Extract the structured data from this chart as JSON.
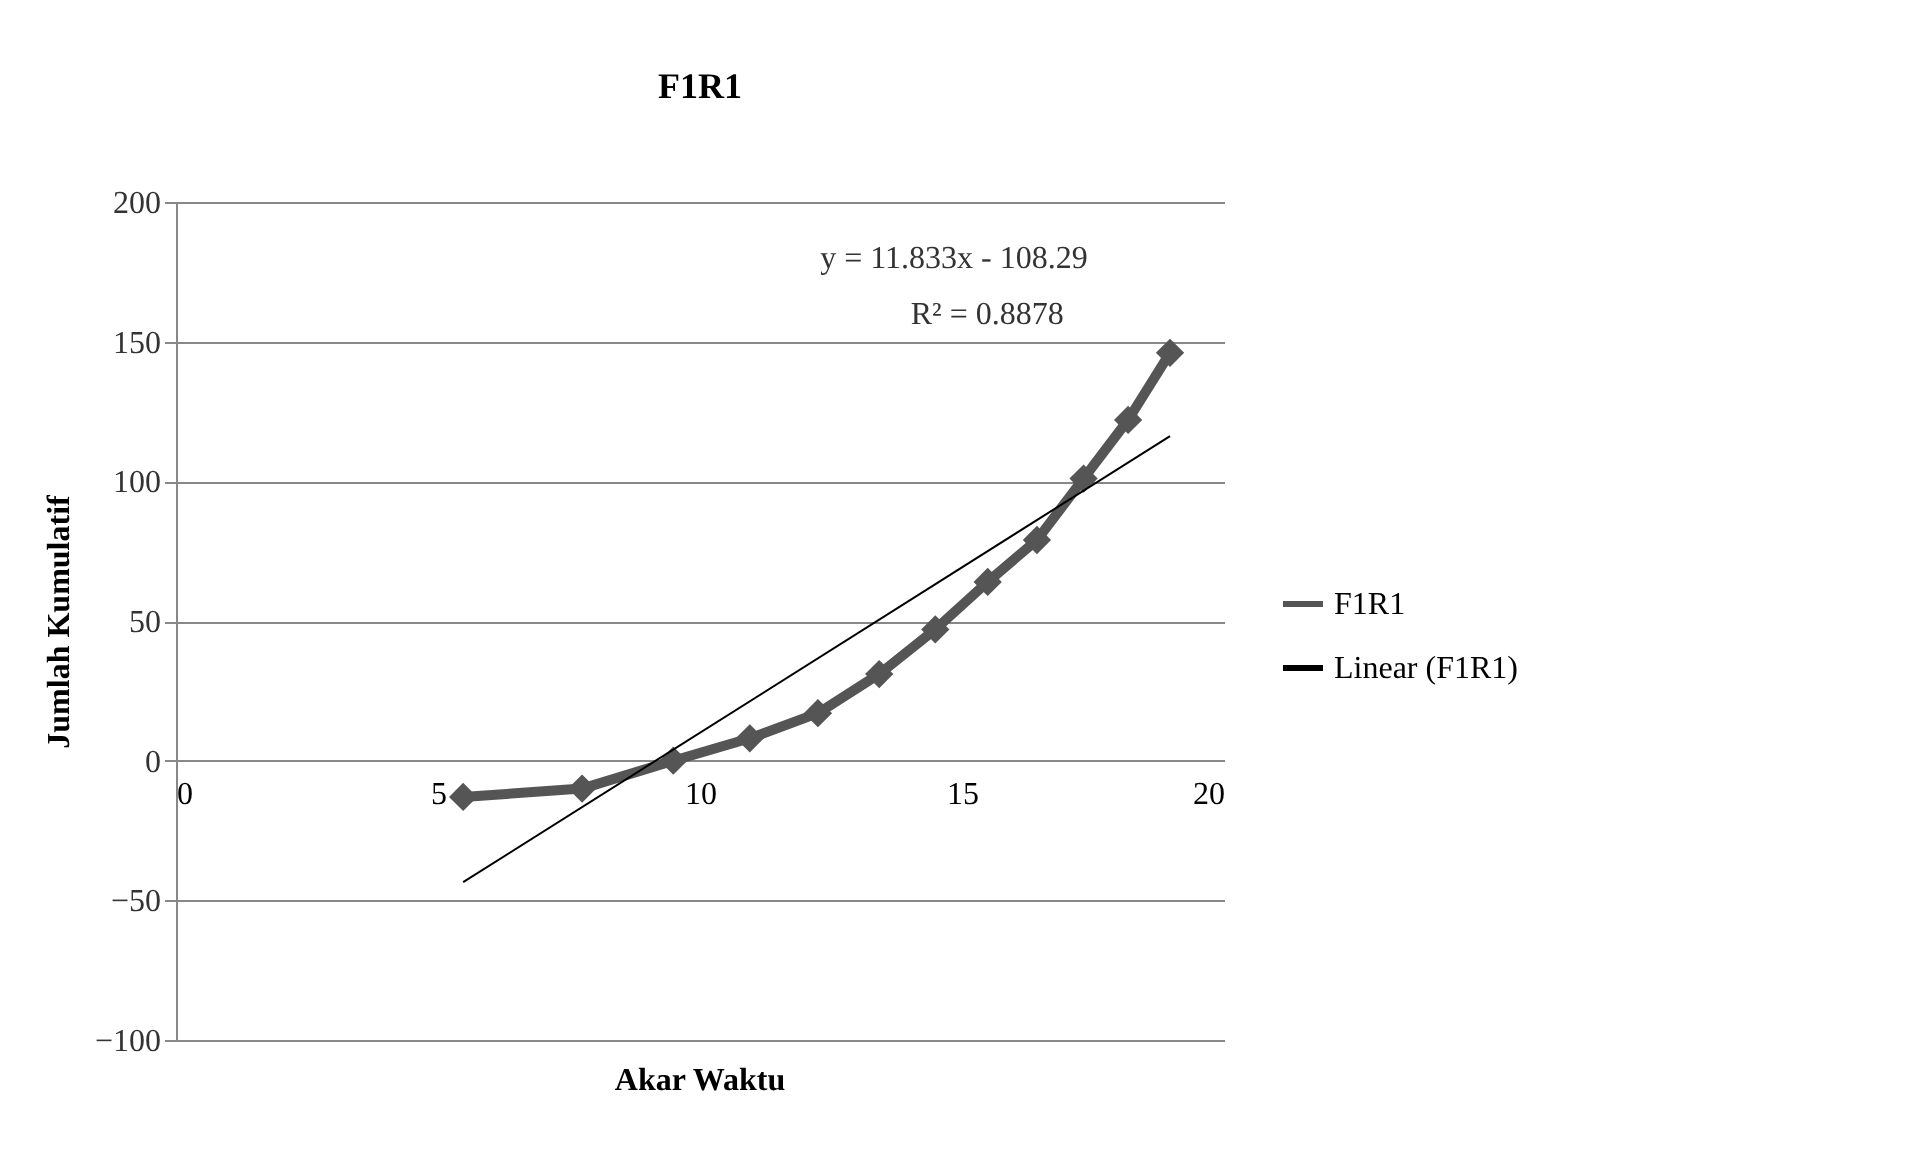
{
  "chart_data": {
    "type": "line",
    "title": "F1R1",
    "xlabel": "Akar Waktu",
    "ylabel": "Jumlah Kumulatif",
    "xlim": [
      0,
      20
    ],
    "xticks": [
      0,
      5,
      10,
      15,
      20
    ],
    "ylim": [
      -100,
      200
    ],
    "yticks": [
      -100,
      -50,
      0,
      50,
      100,
      150,
      200
    ],
    "grid": "y",
    "legend": "right",
    "marker": "diamond",
    "annotations": [
      "y = 11.833x - 108.29",
      "R² = 0.8878"
    ],
    "series": [
      {
        "name": "F1R1",
        "color": "#555555",
        "x": [
          5.48,
          7.75,
          9.49,
          10.95,
          12.25,
          13.42,
          14.49,
          15.49,
          16.43,
          17.32,
          18.17,
          18.97
        ],
        "values": [
          -13,
          -10,
          0,
          8,
          17,
          31,
          47,
          64,
          79,
          101,
          122,
          146
        ]
      },
      {
        "name": "Linear (F1R1)",
        "type": "line",
        "marker": "none",
        "color": "#000000",
        "x": [
          5.48,
          18.97
        ],
        "values": [
          -43.5,
          116.2
        ]
      }
    ]
  }
}
